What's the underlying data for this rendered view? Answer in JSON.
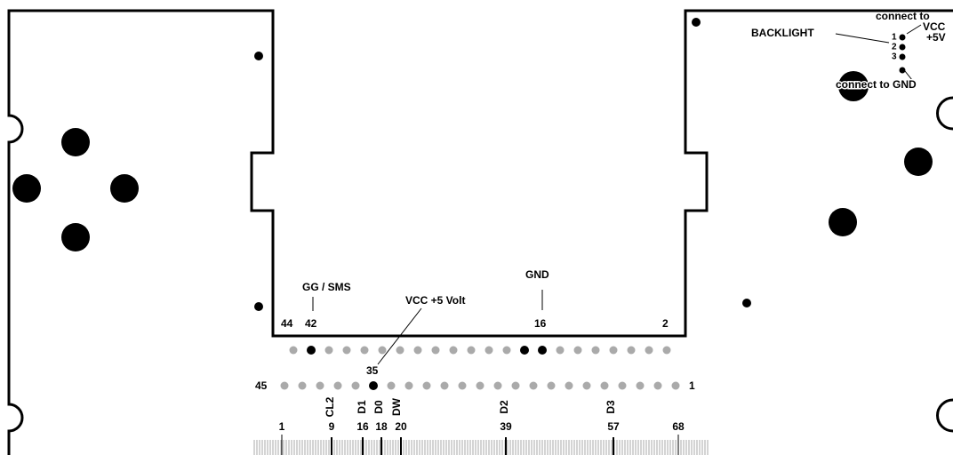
{
  "top_connector": {
    "gg_sms": "GG / SMS",
    "gnd": "GND",
    "vcc": "VCC +5 Volt",
    "pins": [
      "44",
      "42",
      "16",
      "2"
    ]
  },
  "bottom_row": {
    "pin_left": "45",
    "pin_right": "1",
    "pin_35": "35",
    "signals": [
      "CL2",
      "D1",
      "D0",
      "DW",
      "D2",
      "D3"
    ]
  },
  "edge": {
    "numbers": [
      "1",
      "9",
      "16",
      "18",
      "20",
      "39",
      "57",
      "68"
    ]
  },
  "backlight": {
    "label": "BACKLIGHT",
    "pins": [
      "1",
      "2",
      "3"
    ],
    "vcc_note": [
      "connect to",
      "VCC",
      "+5V"
    ],
    "gnd_note": "connect to GND"
  }
}
